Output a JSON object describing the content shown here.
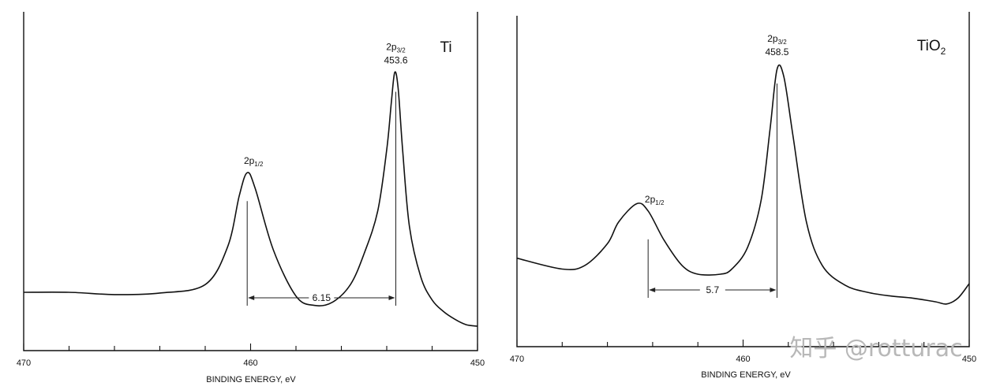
{
  "chart_data": [
    {
      "type": "line",
      "title": "Ti",
      "xlabel": "BINDING ENERGY, eV",
      "ylabel": "",
      "x_reversed": true,
      "xlim": [
        470,
        450
      ],
      "x_ticks": [
        470,
        460,
        450
      ],
      "grid": false,
      "series": [
        {
          "x": [
            470,
            468,
            466,
            464,
            462,
            461,
            460.5,
            460.15,
            459.8,
            459,
            458,
            457.2,
            456.4,
            455.6,
            455,
            454.4,
            454,
            453.8,
            453.65,
            453.5,
            453.3,
            453,
            452.5,
            452,
            451.5,
            451,
            450.5,
            450
          ],
          "y": [
            5.5,
            5.5,
            5.2,
            5.4,
            6.5,
            11.5,
            18,
            21,
            19,
            11,
            5,
            3.8,
            4.2,
            6.5,
            10.5,
            16,
            24,
            30,
            34,
            32,
            24,
            14,
            7.5,
            4.5,
            3,
            2,
            1.3,
            1.1
          ]
        }
      ],
      "peaks": [
        {
          "label": "2p1/2",
          "x": 460.15
        },
        {
          "label": "2p3/2",
          "x": 453.6,
          "value_label": "453.6"
        }
      ],
      "splitting": {
        "value": 6.15,
        "label": "6.15"
      }
    },
    {
      "type": "line",
      "title": "TiO2",
      "xlabel": "BINDING ENERGY, eV",
      "ylabel": "",
      "x_reversed": true,
      "xlim": [
        470,
        450
      ],
      "x_ticks": [
        470,
        460,
        450
      ],
      "grid": false,
      "series": [
        {
          "x": [
            470,
            468,
            467,
            466,
            465.5,
            464.7,
            464.2,
            463.5,
            462.7,
            462,
            461,
            460.5,
            459.8,
            459.2,
            458.8,
            458.5,
            458.2,
            457.8,
            457.2,
            456.5,
            455.5,
            454.5,
            453.5,
            452.5,
            451.5,
            451,
            450.5,
            450
          ],
          "y": [
            7,
            5.5,
            6,
            9,
            12,
            14.5,
            13.5,
            9.5,
            6,
            4.8,
            4.8,
            5.5,
            8.5,
            15,
            25,
            33,
            32,
            24,
            12,
            6,
            3.3,
            2.3,
            1.8,
            1.5,
            1,
            0.7,
            1.5,
            3.5
          ]
        }
      ],
      "peaks": [
        {
          "label": "2p1/2",
          "x": 464.2
        },
        {
          "label": "2p3/2",
          "x": 458.5,
          "value_label": "458.5"
        }
      ],
      "splitting": {
        "value": 5.7,
        "label": "5.7"
      }
    }
  ],
  "panels": [
    {
      "sample_label": "Ti",
      "sample_sub": "",
      "peak_main": "2p",
      "p32_sub": "3/2",
      "p12_sub": "1/2",
      "value_label": "453.6",
      "split_label": "6.15",
      "tick_labels": [
        "470",
        "460",
        "450"
      ],
      "xlabel": "BINDING ENERGY, eV"
    },
    {
      "sample_label": "TiO",
      "sample_sub": "2",
      "peak_main": "2p",
      "p32_sub": "3/2",
      "p12_sub": "1/2",
      "value_label": "458.5",
      "split_label": "5.7",
      "tick_labels": [
        "470",
        "460",
        "450"
      ],
      "xlabel": "BINDING ENERGY, eV"
    }
  ],
  "watermark": "知乎 @rotturac"
}
